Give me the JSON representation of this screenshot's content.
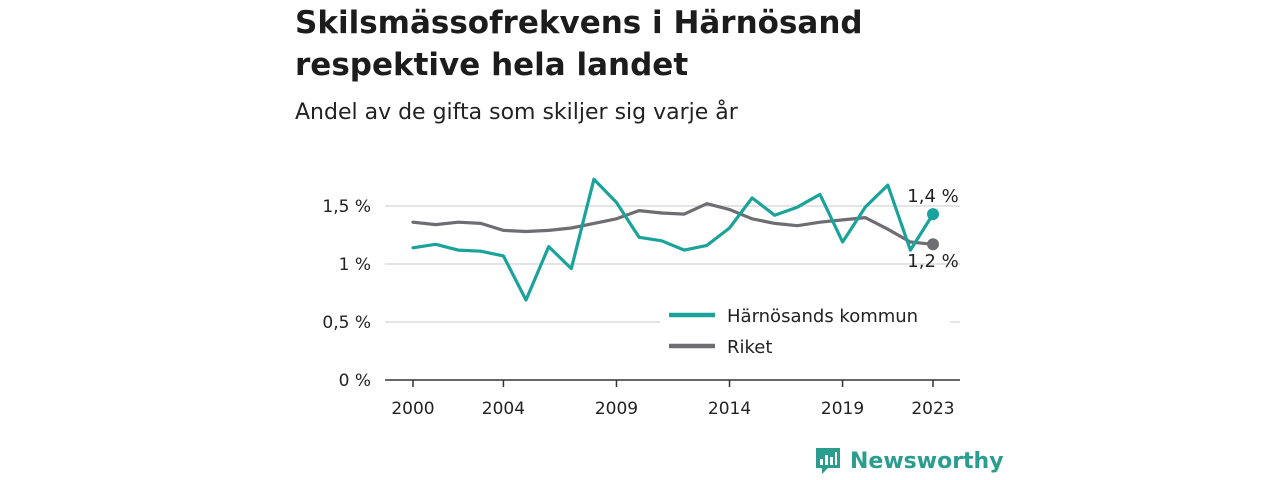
{
  "header": {
    "title_line1": "Skilsmässofrekvens i Härnösand",
    "title_line2": "respektive hela landet",
    "subtitle": "Andel av de gifta som skiljer sig varje år"
  },
  "brand": {
    "name": "Newsworthy",
    "icon": "bar-chart-speech-icon"
  },
  "chart_data": {
    "type": "line",
    "title": "Skilsmässofrekvens i Härnösand respektive hela landet",
    "subtitle": "Andel av de gifta som skiljer sig varje år",
    "x": [
      2000,
      2001,
      2002,
      2003,
      2004,
      2005,
      2006,
      2007,
      2008,
      2009,
      2010,
      2011,
      2012,
      2013,
      2014,
      2015,
      2016,
      2017,
      2018,
      2019,
      2020,
      2021,
      2022,
      2023
    ],
    "x_ticks": [
      2000,
      2004,
      2009,
      2014,
      2019,
      2023
    ],
    "x_tick_labels": [
      "2000",
      "2004",
      "2009",
      "2014",
      "2019",
      "2023"
    ],
    "y_ticks": [
      0,
      0.5,
      1,
      1.5
    ],
    "y_tick_labels": [
      "0 %",
      "0,5 %",
      "1 %",
      "1,5 %"
    ],
    "ylim": [
      0,
      1.75
    ],
    "grid": true,
    "legend_position": "bottom-right",
    "series": [
      {
        "name": "Härnösands kommun",
        "color": "#1aa39a",
        "values": [
          1.14,
          1.17,
          1.12,
          1.11,
          1.07,
          0.69,
          1.15,
          0.96,
          1.73,
          1.53,
          1.23,
          1.2,
          1.12,
          1.16,
          1.31,
          1.57,
          1.42,
          1.49,
          1.6,
          1.19,
          1.49,
          1.68,
          1.12,
          1.43
        ],
        "end_label": "1,4 %"
      },
      {
        "name": "Riket",
        "color": "#6d6d72",
        "values": [
          1.36,
          1.34,
          1.36,
          1.35,
          1.29,
          1.28,
          1.29,
          1.31,
          1.35,
          1.39,
          1.46,
          1.44,
          1.43,
          1.52,
          1.47,
          1.39,
          1.35,
          1.33,
          1.36,
          1.38,
          1.4,
          1.3,
          1.19,
          1.17
        ],
        "end_label": "1,2 %"
      }
    ]
  }
}
